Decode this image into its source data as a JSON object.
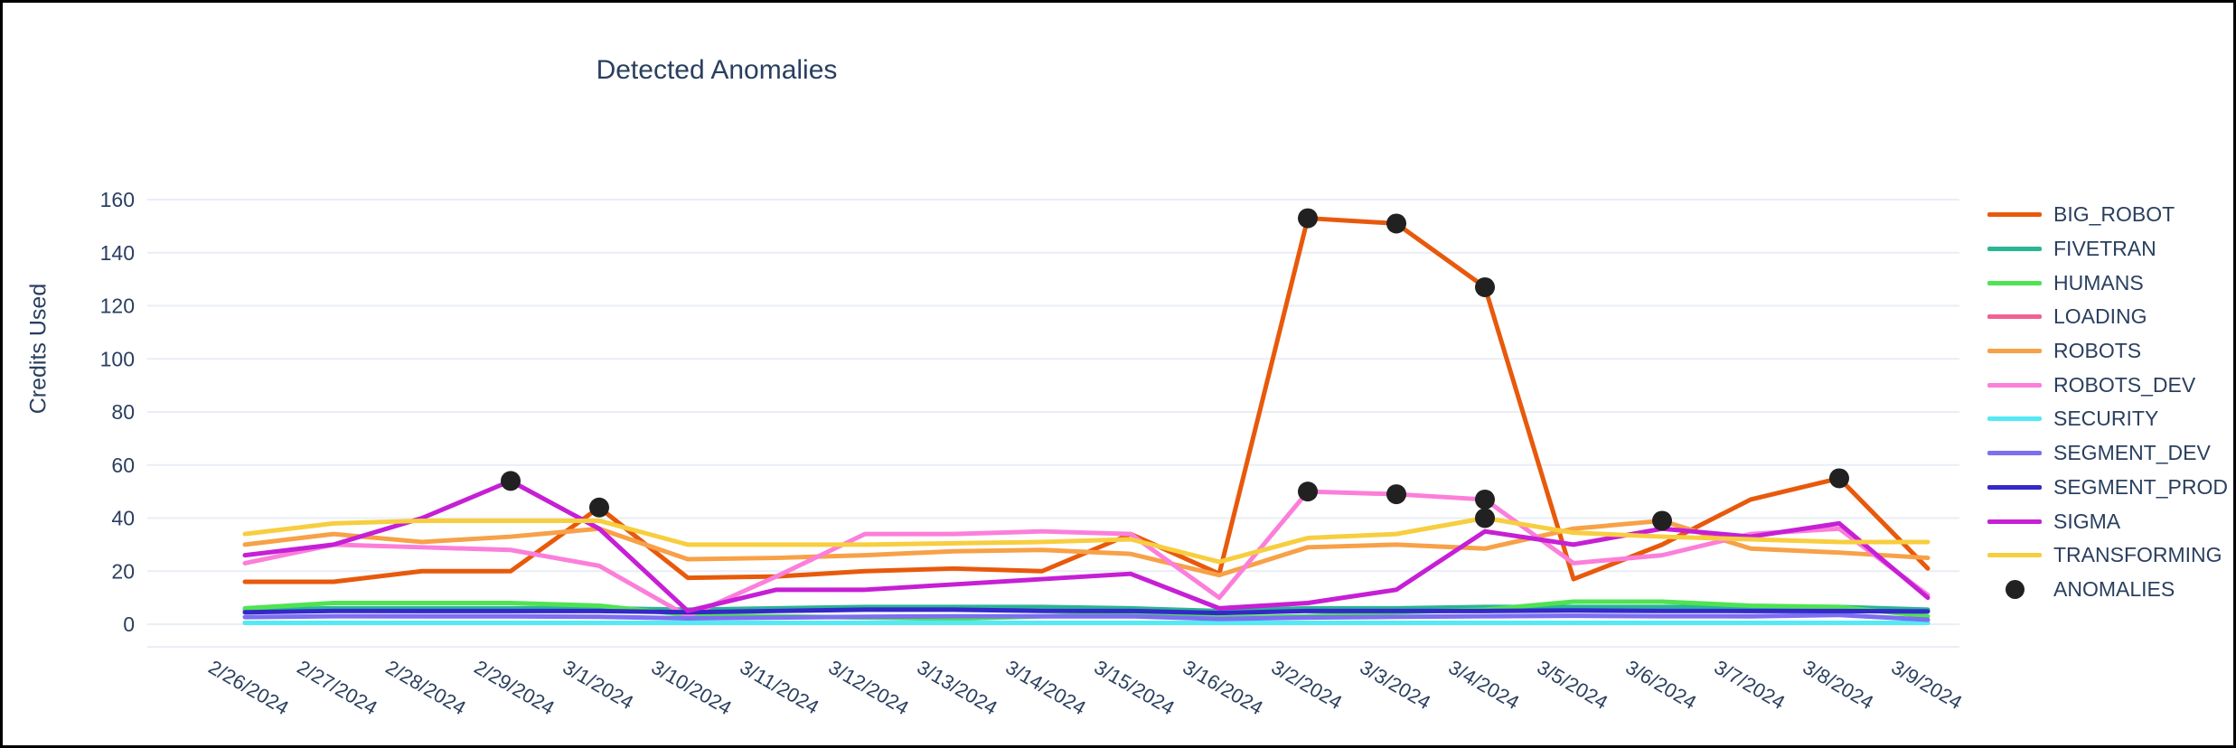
{
  "title": "Detected Anomalies",
  "chart_data": {
    "type": "line",
    "title": "Detected Anomalies",
    "xlabel": "",
    "ylabel": "Credits Used",
    "ylim": [
      0,
      160
    ],
    "yticks": [
      0,
      20,
      40,
      60,
      80,
      100,
      120,
      140,
      160
    ],
    "grid": true,
    "legend_position": "right",
    "text_color": "#2a3f5f",
    "grid_color": "#e9eef6",
    "categories": [
      "2/26/2024",
      "2/27/2024",
      "2/28/2024",
      "2/29/2024",
      "3/1/2024",
      "3/10/2024",
      "3/11/2024",
      "3/12/2024",
      "3/13/2024",
      "3/14/2024",
      "3/15/2024",
      "3/16/2024",
      "3/2/2024",
      "3/3/2024",
      "3/4/2024",
      "3/5/2024",
      "3/6/2024",
      "3/7/2024",
      "3/8/2024",
      "3/9/2024"
    ],
    "series": [
      {
        "name": "BIG_ROBOT",
        "color": "#e8590c",
        "values": [
          16,
          16,
          20,
          20,
          44,
          17.5,
          18,
          20,
          21,
          20,
          34,
          19,
          153,
          151,
          127,
          17,
          30,
          47,
          55,
          21
        ]
      },
      {
        "name": "FIVETRAN",
        "color": "#2ab595",
        "values": [
          5.5,
          6,
          6,
          6,
          6,
          5.5,
          6,
          6.5,
          6.5,
          6.5,
          6,
          5,
          6,
          6,
          6.5,
          6.5,
          6.5,
          6.5,
          6.5,
          5.5
        ]
      },
      {
        "name": "HUMANS",
        "color": "#4fe353",
        "values": [
          6,
          8,
          8,
          8,
          7,
          3.5,
          3,
          2.5,
          2,
          3,
          4,
          2.5,
          3,
          4.5,
          5.5,
          8.5,
          8.5,
          7,
          6.5,
          3
        ]
      },
      {
        "name": "LOADING",
        "color": "#f0628f",
        "values": [
          0.5,
          0.5,
          0.5,
          0.5,
          0.5,
          0.5,
          0.5,
          0.5,
          0.5,
          0.5,
          0.5,
          0.5,
          0.5,
          0.5,
          0.5,
          0.5,
          0.5,
          0.5,
          0.5,
          0.5
        ]
      },
      {
        "name": "ROBOTS",
        "color": "#f7a148",
        "values": [
          30,
          34,
          31,
          33,
          36,
          24.5,
          25,
          26,
          27.5,
          28,
          26.5,
          18.5,
          29,
          30,
          28.5,
          36,
          39,
          28.5,
          27,
          25
        ]
      },
      {
        "name": "ROBOTS_DEV",
        "color": "#fb7fda",
        "values": [
          23,
          30,
          29,
          28,
          22,
          3,
          18,
          34,
          34,
          35,
          34,
          10,
          50,
          49,
          47,
          23,
          26,
          34,
          36,
          11
        ]
      },
      {
        "name": "SECURITY",
        "color": "#55e9f7",
        "values": [
          0.5,
          0.5,
          0.5,
          0.5,
          0.5,
          0.5,
          0.5,
          0.5,
          0.5,
          0.5,
          0.5,
          0.5,
          0.5,
          0.5,
          0.5,
          0.5,
          0.5,
          0.5,
          0.5,
          0.5
        ]
      },
      {
        "name": "SEGMENT_DEV",
        "color": "#7c6ff0",
        "values": [
          2.7,
          3,
          3,
          3,
          2.8,
          2.2,
          2.5,
          2.8,
          3,
          3,
          3,
          2,
          2.5,
          2.8,
          3,
          3.2,
          3,
          3,
          3.5,
          1.7
        ]
      },
      {
        "name": "SEGMENT_PROD",
        "color": "#3528c9",
        "values": [
          4.5,
          5,
          5,
          5,
          5,
          4.5,
          5,
          5.5,
          5.5,
          5,
          5,
          4.2,
          5,
          5,
          5,
          5.2,
          5,
          5,
          5,
          4.8
        ]
      },
      {
        "name": "SIGMA",
        "color": "#c61fd5",
        "values": [
          26,
          30,
          40,
          54,
          36,
          5,
          13,
          13,
          15,
          17,
          19,
          6,
          8,
          13,
          35,
          30,
          36,
          33,
          38,
          10
        ]
      },
      {
        "name": "TRANSFORMING",
        "color": "#f7ce3f",
        "values": [
          34,
          38,
          39,
          39,
          39,
          30,
          30,
          30,
          30.5,
          31,
          32,
          23.5,
          32.5,
          34,
          40,
          34.5,
          33,
          32,
          31,
          31
        ]
      }
    ],
    "anomalies": {
      "name": "ANOMALIES",
      "color": "#212121",
      "points": [
        {
          "x": "2/29/2024",
          "y": 54
        },
        {
          "x": "3/1/2024",
          "y": 44
        },
        {
          "x": "3/2/2024",
          "y": 153
        },
        {
          "x": "3/2/2024",
          "y": 50
        },
        {
          "x": "3/3/2024",
          "y": 151
        },
        {
          "x": "3/3/2024",
          "y": 49
        },
        {
          "x": "3/4/2024",
          "y": 127
        },
        {
          "x": "3/4/2024",
          "y": 47
        },
        {
          "x": "3/4/2024",
          "y": 40
        },
        {
          "x": "3/6/2024",
          "y": 39
        },
        {
          "x": "3/8/2024",
          "y": 55
        }
      ]
    }
  }
}
